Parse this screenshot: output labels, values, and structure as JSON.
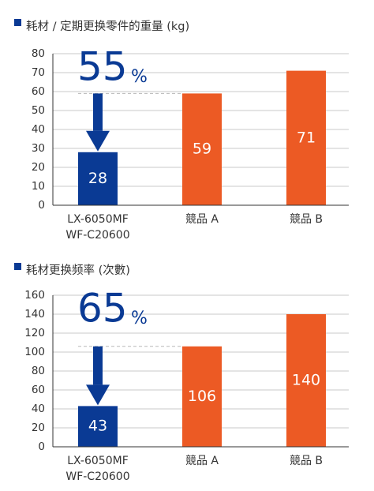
{
  "colors": {
    "highlight": "#0a3a94",
    "competitor": "#ec5a24",
    "text": "#333333",
    "grid": "#c8c8c8",
    "dashed": "#b8b8b8",
    "white": "#ffffff"
  },
  "chart_data": [
    {
      "type": "bar",
      "title": "耗材 / 定期更换零件的重量 (kg)",
      "categories": [
        [
          "LX-6050MF",
          "WF-C20600"
        ],
        [
          "競品 A"
        ],
        [
          "競品 B"
        ]
      ],
      "values": [
        28,
        59,
        71
      ],
      "value_labels": [
        "28",
        "59",
        "71"
      ],
      "ylim": [
        0,
        80
      ],
      "yticks": [
        "0",
        "10",
        "20",
        "30",
        "40",
        "50",
        "60",
        "70",
        "80"
      ],
      "grid": true,
      "reduction_value": "55",
      "reduction_unit": "%"
    },
    {
      "type": "bar",
      "title": "耗材更换频率 (次數)",
      "categories": [
        [
          "LX-6050MF",
          "WF-C20600"
        ],
        [
          "競品 A"
        ],
        [
          "競品 B"
        ]
      ],
      "values": [
        43,
        106,
        140
      ],
      "value_labels": [
        "43",
        "106",
        "140"
      ],
      "ylim": [
        0,
        160
      ],
      "yticks": [
        "0",
        "20",
        "40",
        "60",
        "80",
        "100",
        "120",
        "140",
        "160"
      ],
      "grid": true,
      "reduction_value": "65",
      "reduction_unit": "%"
    }
  ]
}
